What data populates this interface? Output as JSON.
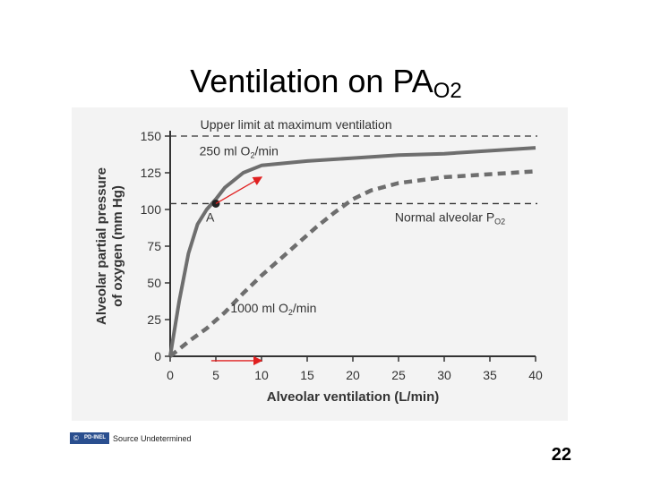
{
  "slide": {
    "title_main": "Ventilation on PA",
    "title_sub": "O2",
    "page_number": "22",
    "credit": {
      "badge_symbol": "©",
      "badge_label": "PD-INEL",
      "text": "Source Undetermined"
    }
  },
  "chart_data": {
    "type": "line",
    "xlabel": "Alveolar ventilation (L/min)",
    "ylabel_line1": "Alveolar partial pressure",
    "ylabel_line2": "of oxygen (mm Hg)",
    "xlim": [
      0,
      40
    ],
    "ylim": [
      0,
      150
    ],
    "x_ticks": [
      0,
      5,
      10,
      15,
      20,
      25,
      30,
      35,
      40
    ],
    "y_ticks": [
      0,
      25,
      50,
      75,
      100,
      125,
      150
    ],
    "series": [
      {
        "name": "250 ml O",
        "name_sub": "2",
        "name_suffix": "/min",
        "style": "solid",
        "color": "#6e6e6e",
        "x": [
          0,
          1,
          2,
          3,
          4,
          5,
          6,
          8,
          10,
          15,
          20,
          25,
          30,
          35,
          40
        ],
        "y": [
          0,
          38,
          70,
          90,
          100,
          107,
          115,
          125,
          130,
          133,
          135,
          137,
          138,
          140,
          142
        ]
      },
      {
        "name": "1000 ml O",
        "name_sub": "2",
        "name_suffix": "/min",
        "style": "dashed",
        "color": "#6e6e6e",
        "x": [
          0,
          2,
          4,
          6,
          8,
          10,
          12,
          14,
          16,
          18,
          20,
          22,
          25,
          30,
          35,
          40
        ],
        "y": [
          0,
          10,
          19,
          30,
          43,
          55,
          66,
          77,
          88,
          98,
          107,
          113,
          118,
          122,
          124,
          126
        ]
      }
    ],
    "reference_lines": [
      {
        "label": "Upper limit at maximum ventilation",
        "y": 150
      },
      {
        "label": "Normal alveolar P",
        "label_sub": "O2",
        "y": 104
      }
    ],
    "point": {
      "label": "A",
      "x": 5,
      "y": 104
    },
    "arrows": [
      {
        "from": [
          5,
          104
        ],
        "to": [
          10,
          122
        ],
        "color": "#e02020"
      },
      {
        "from": [
          4.5,
          -3
        ],
        "to": [
          10,
          -3
        ],
        "color": "#e02020"
      }
    ]
  }
}
